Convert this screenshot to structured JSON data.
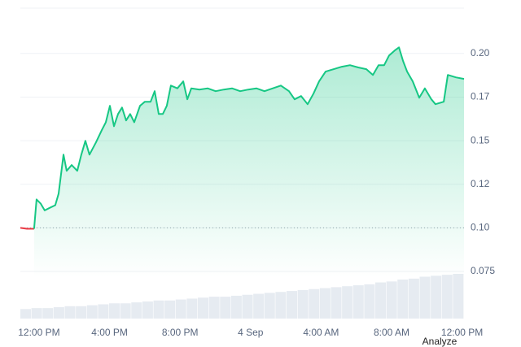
{
  "chart_data": {
    "type": "line",
    "xlim": [
      -1.06,
      24.11
    ],
    "xticks": [
      {
        "value": 0,
        "label": "12:00 PM"
      },
      {
        "value": 4,
        "label": "4:00 PM"
      },
      {
        "value": 8,
        "label": "8:00 PM"
      },
      {
        "value": 12,
        "label": "4 Sep"
      },
      {
        "value": 16,
        "label": "4:00 AM"
      },
      {
        "value": 20,
        "label": "8:00 AM"
      },
      {
        "value": 24,
        "label": "12:00 PM"
      }
    ],
    "ylim": [
      0.048,
      0.226
    ],
    "yticks": [
      {
        "value": 0.2,
        "label": "0.20"
      },
      {
        "value": 0.175,
        "label": "0.17"
      },
      0.15,
      {
        "value": 0.125,
        "label": "0.12"
      },
      {
        "value": 0.1,
        "label": "0.10"
      },
      0.075
    ],
    "grid": true,
    "reference_value": 0.1,
    "series": [
      {
        "color": "#ea3943",
        "x": [
          -1.06,
          -0.69,
          -0.28
        ],
        "values": [
          0.1,
          0.0995,
          0.0995
        ]
      },
      {
        "color": "#16c784",
        "x": [
          -0.28,
          -0.14,
          0.09,
          0.32,
          0.65,
          0.92,
          1.11,
          1.39,
          1.57,
          1.85,
          2.17,
          2.4,
          2.63,
          2.86,
          3.23,
          3.56,
          3.79,
          4.02,
          4.25,
          4.48,
          4.71,
          4.94,
          5.17,
          5.4,
          5.73,
          6.0,
          6.33,
          6.56,
          6.79,
          7.02,
          7.25,
          7.48,
          7.85,
          8.18,
          8.41,
          8.64,
          9.1,
          9.56,
          10.02,
          10.48,
          10.95,
          11.41,
          11.87,
          12.33,
          12.79,
          13.26,
          13.72,
          14.18,
          14.5,
          14.87,
          15.24,
          15.57,
          15.89,
          16.26,
          16.72,
          17.18,
          17.64,
          18.11,
          18.57,
          18.94,
          19.26,
          19.58,
          19.86,
          20.18,
          20.42,
          20.65,
          20.88,
          21.2,
          21.57,
          21.89,
          22.26,
          22.49,
          22.96,
          23.19,
          23.65,
          24.11
        ],
        "values": [
          0.0995,
          0.1163,
          0.114,
          0.11,
          0.1117,
          0.113,
          0.1196,
          0.142,
          0.1327,
          0.136,
          0.1327,
          0.142,
          0.1499,
          0.142,
          0.149,
          0.156,
          0.1606,
          0.17,
          0.1583,
          0.1653,
          0.169,
          0.1616,
          0.1653,
          0.1606,
          0.17,
          0.1723,
          0.1723,
          0.1784,
          0.1653,
          0.1653,
          0.17,
          0.1816,
          0.18,
          0.184,
          0.1737,
          0.18,
          0.1793,
          0.18,
          0.1784,
          0.1793,
          0.18,
          0.1784,
          0.1793,
          0.18,
          0.1784,
          0.18,
          0.1816,
          0.1784,
          0.1737,
          0.1756,
          0.1709,
          0.177,
          0.184,
          0.1896,
          0.191,
          0.1924,
          0.1933,
          0.192,
          0.191,
          0.1877,
          0.1933,
          0.1933,
          0.1989,
          0.2017,
          0.2035,
          0.1957,
          0.1896,
          0.184,
          0.1746,
          0.18,
          0.1737,
          0.1709,
          0.1723,
          0.1877,
          0.1863,
          0.1854
        ]
      }
    ],
    "volume": [
      10,
      11,
      11,
      12,
      13,
      13,
      14,
      15,
      16,
      16,
      17,
      18,
      19,
      19,
      20,
      21,
      22,
      23,
      23,
      24,
      25,
      26,
      27,
      28,
      29,
      30,
      31,
      32,
      33,
      34,
      35,
      36,
      38,
      39,
      41,
      42,
      44,
      45,
      46,
      47
    ],
    "button_label": "Analyze"
  }
}
